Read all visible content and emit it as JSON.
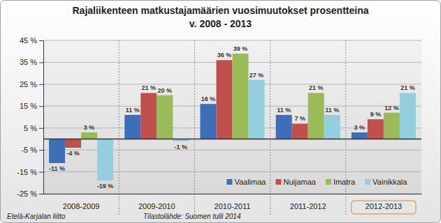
{
  "chart_data": {
    "type": "bar",
    "title": "Rajaliikenteen matkustajamäärien vuosimuutokset prosentteina",
    "subtitle": "v. 2008 - 2013",
    "categories": [
      "2008-2009",
      "2009-2010",
      "2010-2011",
      "2011-2012",
      "2012-2013"
    ],
    "series": [
      {
        "name": "Vaalimaa",
        "color": "#3d6fb6",
        "values": [
          -11,
          11,
          16,
          11,
          3
        ],
        "value_labels": [
          "-11 %",
          "11 %",
          "16 %",
          "11 %",
          "3 %"
        ]
      },
      {
        "name": "Nuijamaa",
        "color": "#c0504d",
        "values": [
          -4,
          21,
          36,
          7,
          9
        ],
        "value_labels": [
          "-4 %",
          "21 %",
          "36 %",
          "7 %",
          "9 %"
        ]
      },
      {
        "name": "Imatra",
        "color": "#9bbb59",
        "values": [
          3,
          20,
          39,
          21,
          12
        ],
        "value_labels": [
          "3 %",
          "20 %",
          "39 %",
          "21 %",
          "12 %"
        ]
      },
      {
        "name": "Vainikkala",
        "color": "#93cfdf",
        "values": [
          -19,
          -1,
          27,
          11,
          21
        ],
        "value_labels": [
          "-19 %",
          "-1 %",
          "27 %",
          "11 %",
          "21 %"
        ]
      }
    ],
    "ylim": [
      -25,
      45
    ],
    "yticks": [
      {
        "value": -25,
        "label": "-25 %"
      },
      {
        "value": -15,
        "label": "-15 %"
      },
      {
        "value": -5,
        "label": "-5 %"
      },
      {
        "value": 5,
        "label": "5 %"
      },
      {
        "value": 15,
        "label": "15 %"
      },
      {
        "value": 25,
        "label": "25 %"
      },
      {
        "value": 35,
        "label": "35 %"
      },
      {
        "value": 45,
        "label": "45 %"
      }
    ],
    "grid": true,
    "legend": "bottom",
    "data_labels": true,
    "annotations": [
      "Etelä-Karjalan liitto",
      "Tilastolähde: Suomen tulli 2014"
    ]
  }
}
